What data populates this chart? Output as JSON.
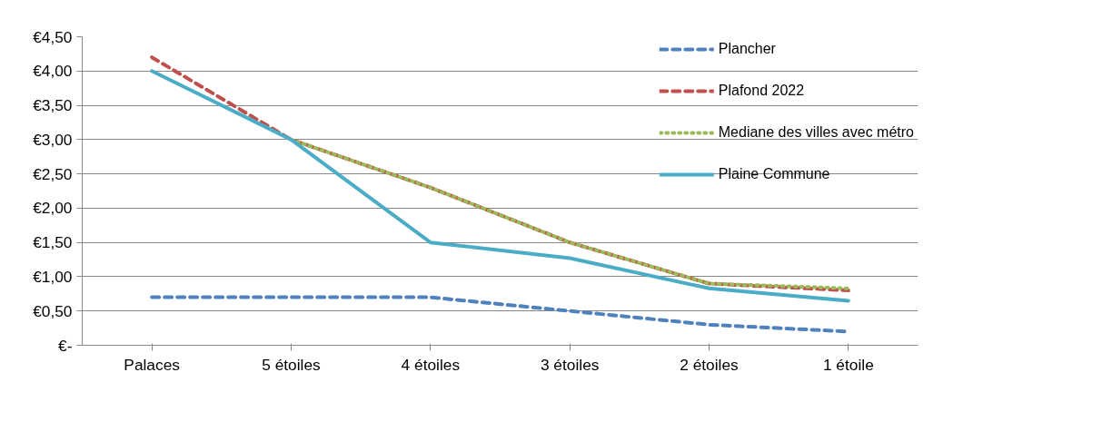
{
  "chart_data": {
    "type": "line",
    "categories": [
      "Palaces",
      "5 étoiles",
      "4 étoiles",
      "3 étoiles",
      "2 étoiles",
      "1 étoile"
    ],
    "series": [
      {
        "name": "Plancher",
        "color": "#4f81bd",
        "line_style": "dashed",
        "values": [
          0.7,
          0.7,
          0.7,
          0.5,
          0.3,
          0.2
        ]
      },
      {
        "name": "Plafond 2022",
        "color": "#c0504d",
        "line_style": "dashed",
        "values": [
          4.2,
          3.0,
          2.3,
          1.5,
          0.9,
          0.8
        ]
      },
      {
        "name": "Mediane des villes avec métro",
        "color": "#9bbb59",
        "line_style": "dotted",
        "values": [
          null,
          3.0,
          2.3,
          1.5,
          0.9,
          0.83
        ]
      },
      {
        "name": "Plaine Commune",
        "color": "#4bacc6",
        "line_style": "solid",
        "values": [
          4.0,
          3.0,
          1.5,
          1.27,
          0.83,
          0.65
        ]
      }
    ],
    "ylim": [
      0,
      4.5
    ],
    "yticks": [
      {
        "value": 0,
        "label": "€-"
      },
      {
        "value": 0.5,
        "label": "€0,50"
      },
      {
        "value": 1,
        "label": "€1,00"
      },
      {
        "value": 1.5,
        "label": "€1,50"
      },
      {
        "value": 2,
        "label": "€2,00"
      },
      {
        "value": 2.5,
        "label": "€2,50"
      },
      {
        "value": 3,
        "label": "€3,00"
      },
      {
        "value": 3.5,
        "label": "€3,50"
      },
      {
        "value": 4,
        "label": "€4,00"
      },
      {
        "value": 4.5,
        "label": "€4,50"
      }
    ],
    "grid": "y",
    "legend": "right",
    "marker": "none"
  }
}
